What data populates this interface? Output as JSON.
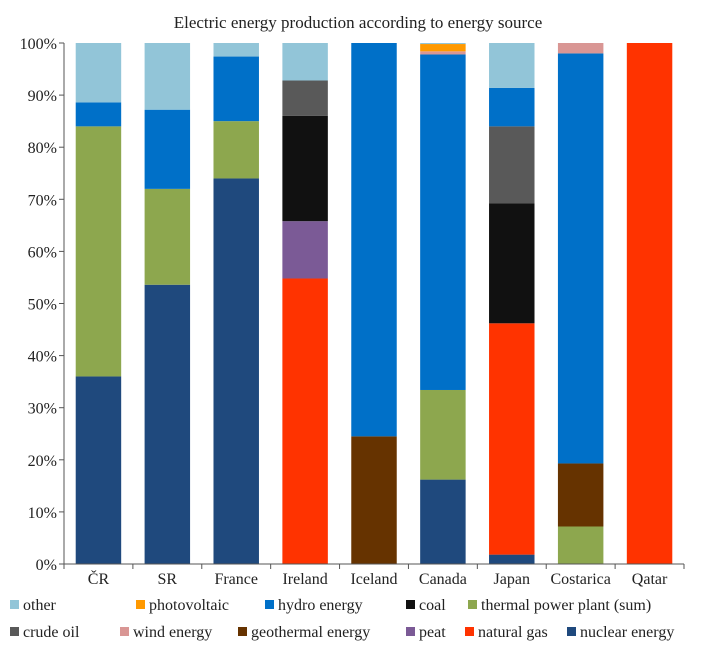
{
  "chart_data": {
    "type": "bar",
    "stacked": true,
    "title": "Electric energy production according to energy source",
    "xlabel": "",
    "ylabel": "",
    "ylim": [
      0,
      100
    ],
    "y_ticks": [
      0,
      10,
      20,
      30,
      40,
      50,
      60,
      70,
      80,
      90,
      100
    ],
    "y_tick_suffix": "%",
    "grid": false,
    "legend_position": "bottom",
    "categories": [
      "ČR",
      "SR",
      "France",
      "Ireland",
      "Iceland",
      "Canada",
      "Japan",
      "Costarica",
      "Qatar"
    ],
    "series": [
      {
        "name": "nuclear energy",
        "color": "#1F497D",
        "values": [
          36,
          53.6,
          74,
          0,
          0,
          16.2,
          1.8,
          0,
          0
        ]
      },
      {
        "name": "natural gas",
        "color": "#FF3300",
        "values": [
          0,
          0,
          0,
          54.8,
          0,
          0,
          44.4,
          0,
          100
        ]
      },
      {
        "name": "peat",
        "color": "#7B5A96",
        "values": [
          0,
          0,
          0,
          11,
          0,
          0,
          0,
          0,
          0
        ]
      },
      {
        "name": "geothermal energy",
        "color": "#663300",
        "values": [
          0,
          0,
          0,
          0,
          24.5,
          0,
          0,
          12.1,
          0
        ]
      },
      {
        "name": "wind energy",
        "color": "#D99694",
        "values": [
          0,
          0,
          0,
          0,
          0,
          0.6,
          0,
          2,
          0
        ]
      },
      {
        "name": "crude oil",
        "color": "#595959",
        "values": [
          0,
          0,
          0,
          6.8,
          0,
          0,
          14.8,
          0,
          0
        ]
      },
      {
        "name": "thermal power plant (sum)",
        "color": "#8DA74E",
        "values": [
          48,
          18.4,
          11,
          0,
          0,
          17.2,
          0,
          7.2,
          0
        ]
      },
      {
        "name": "coal",
        "color": "#111111",
        "values": [
          0,
          0,
          0,
          20.2,
          0,
          0,
          23,
          0,
          0
        ]
      },
      {
        "name": "hydro energy",
        "color": "#0070C8",
        "values": [
          4.6,
          15.2,
          12.4,
          0,
          75.5,
          64.4,
          7.4,
          78.7,
          0
        ]
      },
      {
        "name": "photovoltaic",
        "color": "#FF9900",
        "values": [
          0,
          0,
          0,
          0,
          0,
          1.4,
          0,
          0,
          0
        ]
      },
      {
        "name": "other",
        "color": "#92C5D8",
        "values": [
          11.4,
          12.8,
          2.6,
          7.2,
          0,
          0.2,
          8.6,
          0,
          0
        ]
      }
    ],
    "stack_order": [
      "nuclear energy",
      "thermal power plant (sum)",
      "natural gas",
      "peat",
      "geothermal energy",
      "coal",
      "crude oil",
      "hydro energy",
      "wind energy",
      "photovoltaic",
      "other"
    ],
    "legend_rows": [
      [
        "other",
        "photovoltaic",
        "hydro energy",
        "coal",
        "thermal power plant (sum)"
      ],
      [
        "crude oil",
        "wind energy",
        "geothermal energy",
        "peat",
        "natural gas",
        "nuclear energy"
      ]
    ]
  }
}
